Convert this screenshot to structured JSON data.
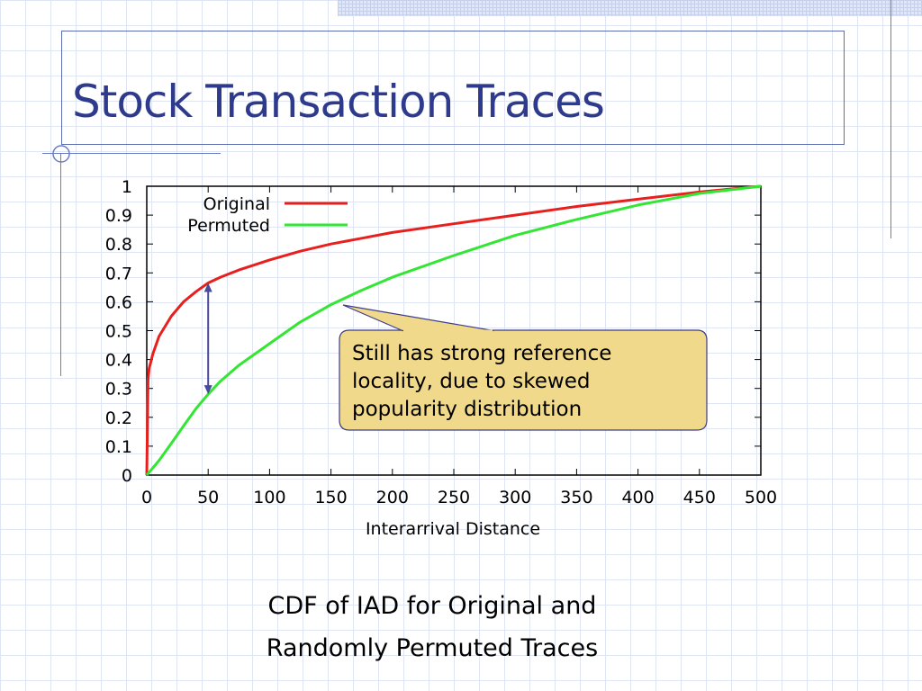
{
  "slide": {
    "title": "Stock Transaction Traces",
    "caption_line1": "CDF of IAD for Original and",
    "caption_line2": "Randomly Permuted Traces"
  },
  "callout": {
    "line1": "Still has strong reference",
    "line2": "locality, due to skewed",
    "line3": "popularity distribution",
    "fill": "#f0d98a"
  },
  "chart_data": {
    "type": "line",
    "xlabel": "Interarrival Distance",
    "ylabel": "",
    "xlim": [
      0,
      500
    ],
    "ylim": [
      0,
      1
    ],
    "x_ticks": [
      "0",
      "50",
      "100",
      "150",
      "200",
      "250",
      "300",
      "350",
      "400",
      "450",
      "500"
    ],
    "y_ticks": [
      "0",
      "0.1",
      "0.2",
      "0.3",
      "0.4",
      "0.5",
      "0.6",
      "0.7",
      "0.8",
      "0.9",
      "1"
    ],
    "grid": false,
    "legend": "top-left",
    "x": [
      0,
      1,
      2,
      5,
      10,
      20,
      30,
      40,
      50,
      60,
      75,
      100,
      125,
      150,
      175,
      200,
      250,
      300,
      350,
      400,
      450,
      500
    ],
    "series": [
      {
        "name": "Original",
        "color": "#e8201d",
        "values": [
          0,
          0.33,
          0.37,
          0.42,
          0.48,
          0.55,
          0.6,
          0.635,
          0.665,
          0.685,
          0.71,
          0.745,
          0.775,
          0.8,
          0.82,
          0.84,
          0.87,
          0.9,
          0.93,
          0.955,
          0.98,
          1.0
        ]
      },
      {
        "name": "Permuted",
        "color": "#33e633",
        "values": [
          0,
          0.005,
          0.01,
          0.025,
          0.05,
          0.11,
          0.17,
          0.23,
          0.28,
          0.325,
          0.38,
          0.455,
          0.53,
          0.59,
          0.64,
          0.685,
          0.76,
          0.83,
          0.885,
          0.935,
          0.975,
          1.0
        ]
      }
    ],
    "annotation": {
      "type": "double-arrow",
      "x": 50,
      "y_from": 0.28,
      "y_to": 0.665,
      "color": "#4a4a9a"
    }
  }
}
